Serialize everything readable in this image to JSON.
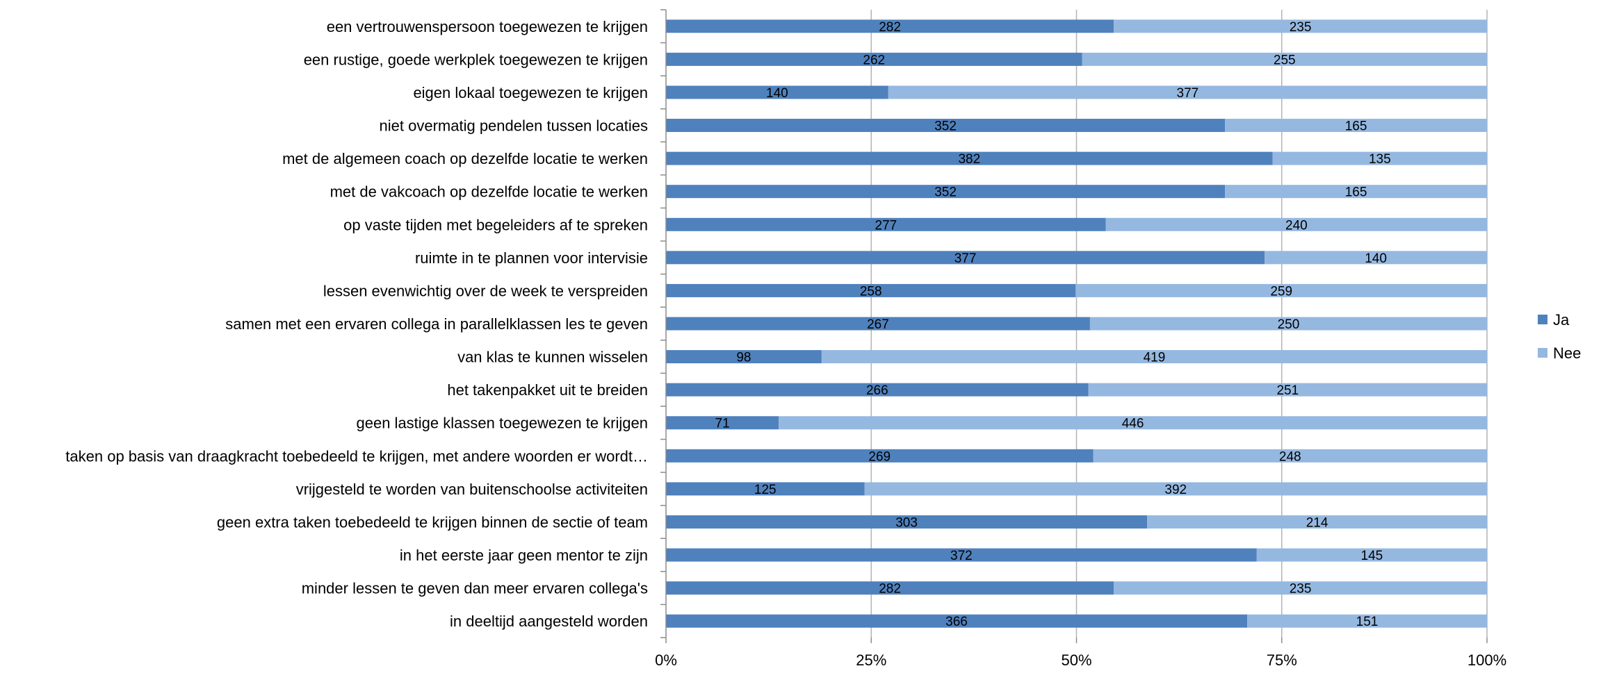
{
  "chart_data": {
    "type": "bar",
    "orientation": "horizontal",
    "stacked": "percent",
    "categories": [
      "een vertrouwenspersoon toegewezen te krijgen",
      "een rustige, goede werkplek toegewezen te krijgen",
      "eigen lokaal toegewezen te krijgen",
      "niet overmatig pendelen tussen locaties",
      "met de algemeen coach op dezelfde locatie te werken",
      "met de vakcoach op dezelfde locatie te werken",
      "op vaste tijden met begeleiders af te spreken",
      "ruimte in te plannen voor intervisie",
      "lessen evenwichtig over de week te verspreiden",
      "samen met een ervaren collega in parallelklassen les te geven",
      "van klas te kunnen wisselen",
      "het takenpakket uit te breiden",
      "geen lastige klassen toegewezen te krijgen",
      "taken op basis van draagkracht toebedeeld te krijgen, met andere woorden er wordt…",
      "vrijgesteld te worden van buitenschoolse activiteiten",
      "geen extra taken toebedeeld te krijgen binnen de sectie of team",
      "in het eerste jaar geen mentor te zijn",
      "minder lessen te geven dan meer ervaren collega's",
      "in deeltijd aangesteld worden"
    ],
    "series": [
      {
        "name": "Ja",
        "color": "#4f81bd",
        "values": [
          282,
          262,
          140,
          352,
          382,
          352,
          277,
          377,
          258,
          267,
          98,
          266,
          71,
          269,
          125,
          303,
          372,
          282,
          366
        ]
      },
      {
        "name": "Nee",
        "color": "#95b8e0",
        "values": [
          235,
          255,
          377,
          165,
          135,
          165,
          240,
          140,
          259,
          250,
          419,
          251,
          446,
          248,
          392,
          214,
          145,
          235,
          151
        ]
      }
    ],
    "x_ticks": [
      "0%",
      "25%",
      "50%",
      "75%",
      "100%"
    ],
    "xlim": [
      0,
      100
    ],
    "grid": true,
    "legend_position": "right"
  }
}
